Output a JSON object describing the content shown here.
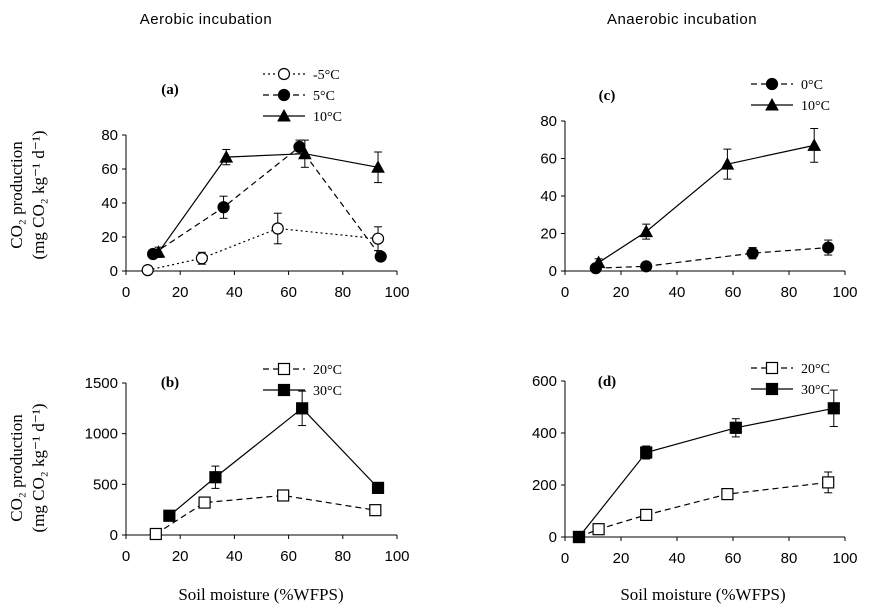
{
  "column_headers": [
    "Aerobic incubation",
    "Anaerobic incubation"
  ],
  "ylabel_line1": "CO₂ production",
  "ylabel_line2": "(mg CO₂ kg⁻¹ d⁻¹)",
  "xlabel": "Soil moisture (%WFPS)",
  "chart_data": [
    {
      "type": "line",
      "title": "(a)",
      "xlim": [
        0,
        100
      ],
      "ylim": [
        0,
        80
      ],
      "xticks": [
        0,
        20,
        40,
        60,
        80,
        100
      ],
      "yticks": [
        0,
        20,
        40,
        60,
        80
      ],
      "legend_position": "top-right",
      "series": [
        {
          "name": "-5°C",
          "marker": "circle-open",
          "dash": "dotted",
          "x": [
            8,
            28,
            56,
            93
          ],
          "y": [
            0.5,
            7.5,
            25,
            19
          ],
          "err": [
            1,
            3.5,
            9,
            7
          ]
        },
        {
          "name": "5°C",
          "marker": "circle-filled",
          "dash": "dashed",
          "x": [
            10,
            36,
            64,
            94
          ],
          "y": [
            10,
            37.5,
            73,
            8.5
          ],
          "err": [
            2,
            6.5,
            4,
            2
          ]
        },
        {
          "name": "10°C",
          "marker": "triangle-filled",
          "dash": "solid",
          "x": [
            12,
            37,
            66,
            93
          ],
          "y": [
            11,
            67,
            69,
            61
          ],
          "err": [
            3,
            4.5,
            8,
            9
          ]
        }
      ]
    },
    {
      "type": "line",
      "title": "(c)",
      "xlim": [
        0,
        100
      ],
      "ylim": [
        0,
        80
      ],
      "xticks": [
        0,
        20,
        40,
        60,
        80,
        100
      ],
      "yticks": [
        0,
        20,
        40,
        60,
        80
      ],
      "legend_position": "top-right",
      "series": [
        {
          "name": "0°C",
          "marker": "circle-filled",
          "dash": "dashed",
          "x": [
            11,
            29,
            67,
            94
          ],
          "y": [
            1.5,
            2.5,
            9.5,
            12.5
          ],
          "err": [
            1,
            1,
            3,
            4
          ]
        },
        {
          "name": "10°C",
          "marker": "triangle-filled",
          "dash": "solid",
          "x": [
            12,
            29,
            58,
            89
          ],
          "y": [
            4.5,
            21,
            57,
            67
          ],
          "err": [
            2,
            4,
            8,
            9
          ]
        }
      ]
    },
    {
      "type": "line",
      "title": "(b)",
      "xlim": [
        0,
        100
      ],
      "ylim": [
        0,
        1500
      ],
      "xticks": [
        0,
        20,
        40,
        60,
        80,
        100
      ],
      "yticks": [
        0,
        500,
        1000,
        1500
      ],
      "legend_position": "top-right",
      "series": [
        {
          "name": "20°C",
          "marker": "square-open",
          "dash": "dashed",
          "x": [
            11,
            29,
            58,
            92
          ],
          "y": [
            10,
            320,
            390,
            245
          ],
          "err": [
            0,
            0,
            0,
            0
          ]
        },
        {
          "name": "30°C",
          "marker": "square-filled",
          "dash": "solid",
          "x": [
            16,
            33,
            65,
            93
          ],
          "y": [
            190,
            570,
            1250,
            465
          ],
          "err": [
            0,
            110,
            170,
            0
          ]
        }
      ]
    },
    {
      "type": "line",
      "title": "(d)",
      "xlim": [
        0,
        100
      ],
      "ylim": [
        0,
        600
      ],
      "xticks": [
        0,
        20,
        40,
        60,
        80,
        100
      ],
      "yticks": [
        0,
        200,
        400,
        600
      ],
      "legend_position": "top-right",
      "series": [
        {
          "name": "20°C",
          "marker": "square-open",
          "dash": "dashed",
          "x": [
            5,
            12,
            29,
            58,
            94
          ],
          "y": [
            0,
            30,
            85,
            165,
            210
          ],
          "err": [
            0,
            0,
            0,
            0,
            40
          ]
        },
        {
          "name": "30°C",
          "marker": "square-filled",
          "dash": "solid",
          "x": [
            5,
            29,
            61,
            96
          ],
          "y": [
            0,
            325,
            420,
            495
          ],
          "err": [
            0,
            25,
            35,
            70
          ]
        }
      ]
    }
  ]
}
